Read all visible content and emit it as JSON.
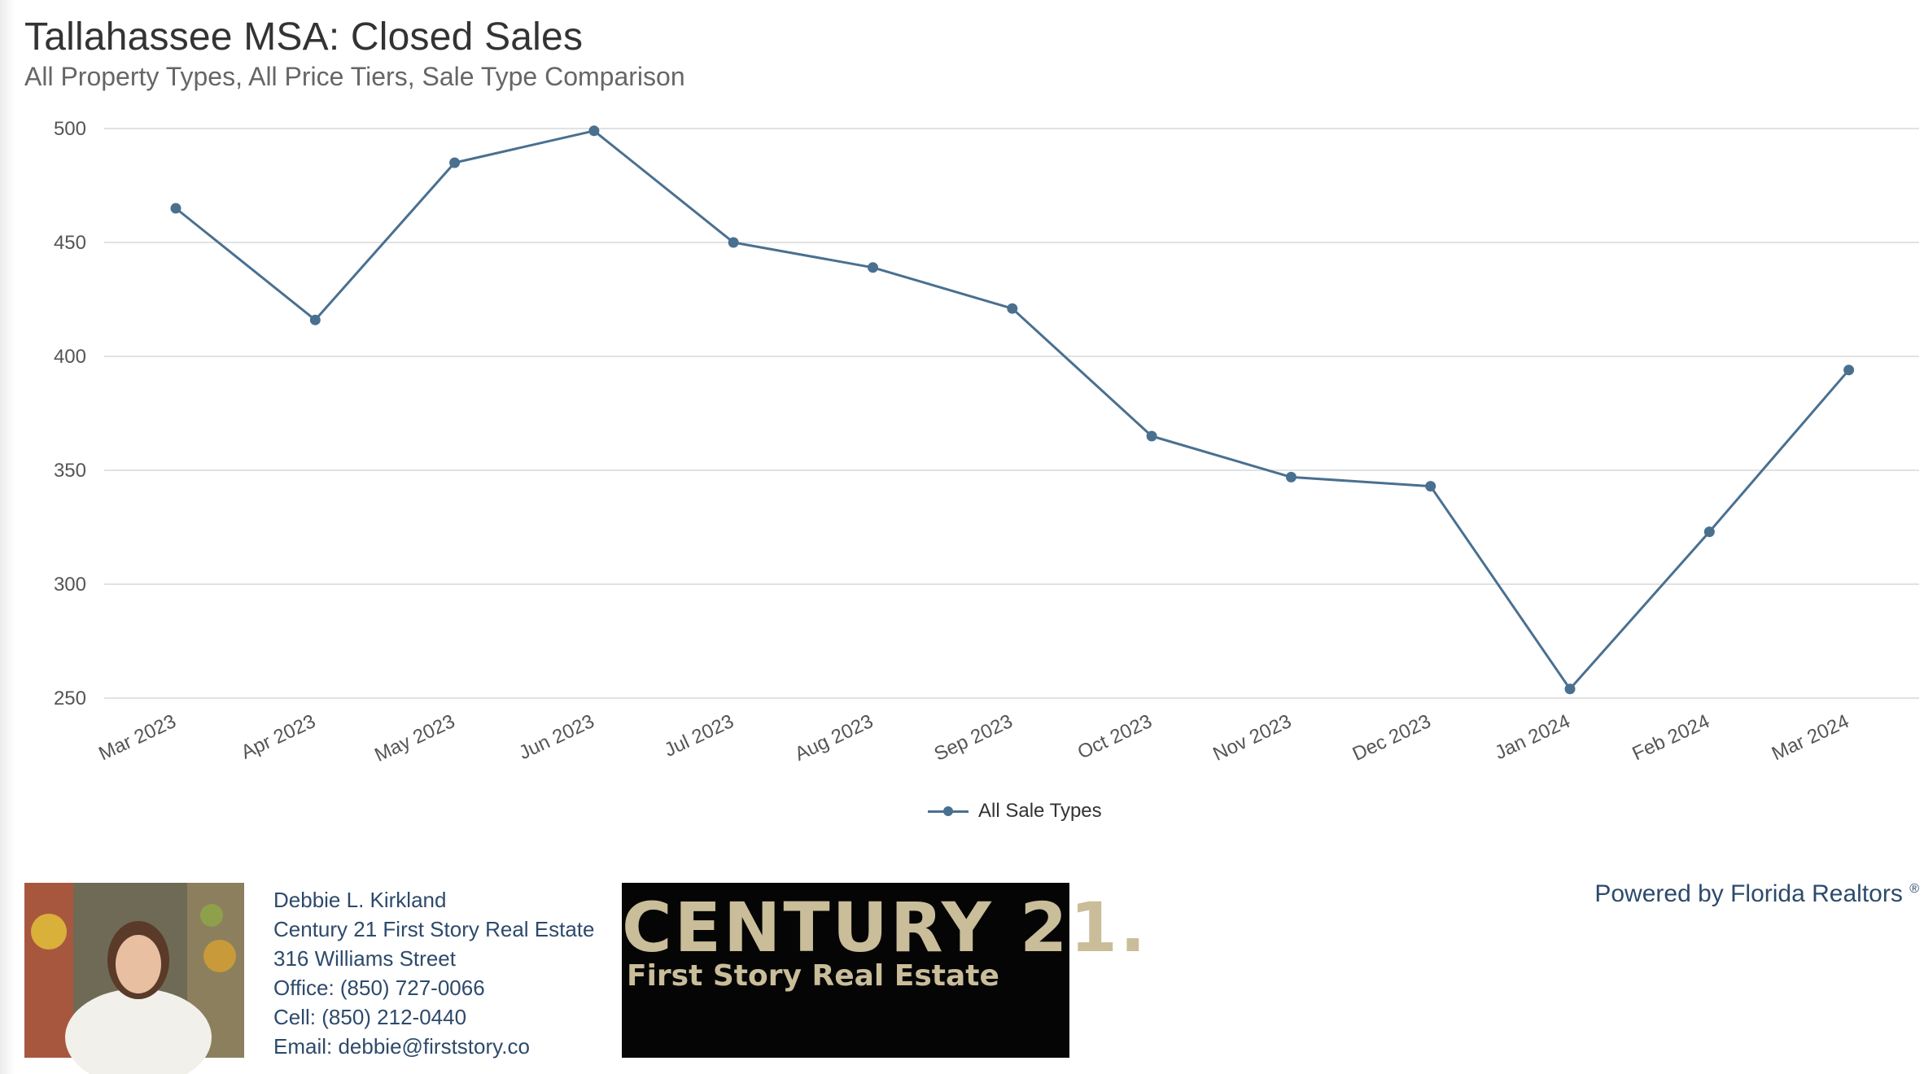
{
  "header": {
    "title": "Tallahassee MSA: Closed Sales",
    "subtitle": "All Property Types, All Price Tiers, Sale Type Comparison"
  },
  "chart_data": {
    "type": "line",
    "title": "Tallahassee MSA: Closed Sales",
    "subtitle": "All Property Types, All Price Tiers, Sale Type Comparison",
    "xlabel": "",
    "ylabel": "",
    "categories": [
      "Mar 2023",
      "Apr 2023",
      "May 2023",
      "Jun 2023",
      "Jul 2023",
      "Aug 2023",
      "Sep 2023",
      "Oct 2023",
      "Nov 2023",
      "Dec 2023",
      "Jan 2024",
      "Feb 2024",
      "Mar 2024"
    ],
    "series": [
      {
        "name": "All Sale Types",
        "values": [
          465,
          416,
          485,
          499,
          450,
          439,
          421,
          365,
          347,
          343,
          254,
          323,
          394
        ],
        "color": "#4a7090"
      }
    ],
    "ylim": [
      250,
      500
    ],
    "yticks": [
      250,
      300,
      350,
      400,
      450,
      500
    ],
    "grid": true,
    "legend_position": "bottom-center"
  },
  "legend": {
    "label": "All Sale Types"
  },
  "agent": {
    "name": "Debbie L. Kirkland",
    "company": "Century 21 First Story Real Estate",
    "address": "316 Williams Street",
    "office": "Office: (850) 727-0066",
    "cell": "Cell: (850) 212-0440",
    "email": "Email: debbie@firststory.co"
  },
  "brand_logo": {
    "main": "CENTURY 21.",
    "sub": "First Story Real Estate"
  },
  "powered_by": {
    "text": "Powered by Florida Realtors",
    "mark": "®"
  }
}
